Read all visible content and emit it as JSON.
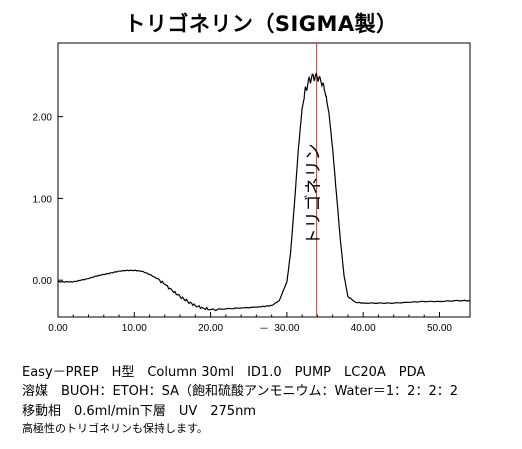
{
  "page": {
    "title": "トリゴネリン（SIGMA製）",
    "conditions": [
      "Easy－PREP　H型　Column 30ml　ID1.0　PUMP　LC20A　PDA",
      "溶媒　BUOH：ETOH：SA（飽和硫酸アンモニウム：Water＝1：2：2：2",
      "移動相　0.6ml/min下層　UV　275nm"
    ],
    "note": "高極性のトリゴネリンも保持します。"
  },
  "chart_data": {
    "type": "line",
    "title": "トリゴネリン（SIGMA製）",
    "xlabel": "",
    "ylabel": "",
    "xlim": [
      0,
      54
    ],
    "ylim": [
      -0.45,
      2.9
    ],
    "x_ticks": [
      0,
      10,
      20,
      30,
      40,
      50
    ],
    "x_tick_labels": [
      "0.00",
      "10.00",
      "20.00",
      "30.00",
      "40.00",
      "50.00"
    ],
    "y_ticks": [
      0,
      1,
      2
    ],
    "y_tick_labels": [
      "0.00",
      "1.00",
      "2.00"
    ],
    "x_axis_mark": "－",
    "grid": false,
    "line_color": "#000000",
    "marker_color": "#c0392b",
    "series": [
      {
        "x": [
          0,
          1,
          2,
          3,
          4,
          5,
          6,
          7,
          8,
          9,
          10,
          11,
          12,
          13,
          14,
          15,
          16,
          17,
          18,
          19,
          20,
          22,
          24,
          26,
          27,
          28,
          29,
          30,
          30.5,
          31,
          31.5,
          32,
          32.5,
          33,
          33.5,
          34,
          34.5,
          35,
          35.5,
          36,
          36.5,
          37,
          37.5,
          38,
          39,
          40,
          42,
          44,
          46,
          48,
          50,
          52,
          54
        ],
        "y": [
          -0.02,
          -0.02,
          -0.02,
          0.0,
          0.02,
          0.05,
          0.07,
          0.09,
          0.11,
          0.12,
          0.12,
          0.11,
          0.07,
          0.02,
          -0.05,
          -0.13,
          -0.2,
          -0.26,
          -0.31,
          -0.34,
          -0.36,
          -0.35,
          -0.34,
          -0.33,
          -0.32,
          -0.31,
          -0.25,
          -0.02,
          0.35,
          0.95,
          1.6,
          2.1,
          2.35,
          2.45,
          2.48,
          2.47,
          2.42,
          2.3,
          2.05,
          1.6,
          1.05,
          0.5,
          0.05,
          -0.2,
          -0.27,
          -0.28,
          -0.28,
          -0.28,
          -0.27,
          -0.26,
          -0.26,
          -0.25,
          -0.25
        ]
      }
    ],
    "annotations": [
      {
        "text": "トリゴネリン",
        "x": 34.2,
        "y": 1.05,
        "orientation": "vertical"
      }
    ],
    "markers": [
      {
        "x": 33.9,
        "type": "vertical-line"
      }
    ]
  }
}
